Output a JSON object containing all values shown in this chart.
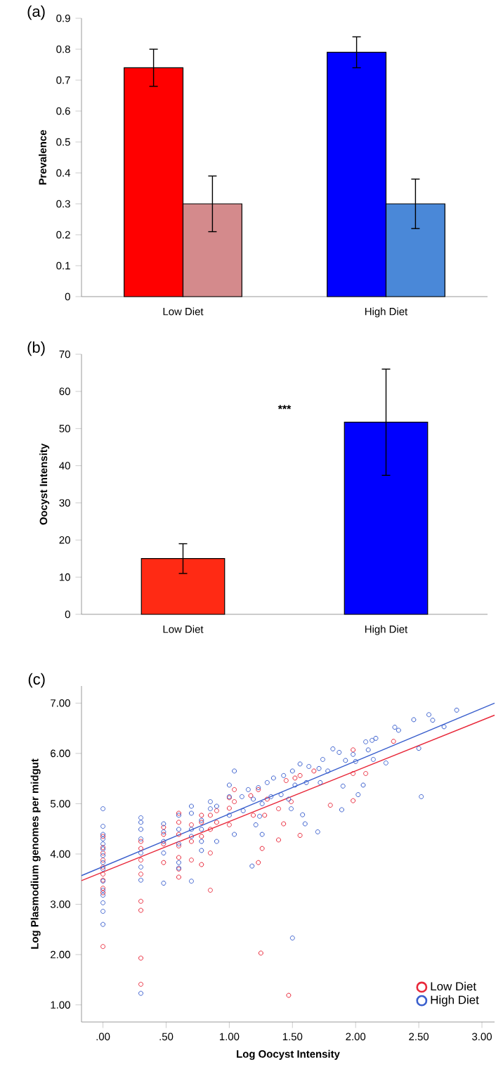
{
  "chart_data": [
    {
      "type": "bar",
      "title": "(a)",
      "ylabel": "Prevalence",
      "categories": [
        "Low Diet",
        "High Diet"
      ],
      "series": [
        {
          "values": [
            0.74,
            0.79
          ],
          "colors": [
            "#ff0000",
            "#0000ff"
          ],
          "errors": [
            0.06,
            0.05
          ]
        },
        {
          "values": [
            0.3,
            0.3
          ],
          "colors": [
            "#d48a8c",
            "#4a88d8"
          ],
          "errors": [
            0.09,
            0.08
          ]
        }
      ],
      "ylim": [
        0,
        0.9
      ],
      "yticks": [
        0,
        0.1,
        0.2,
        0.3,
        0.4,
        0.5,
        0.6,
        0.7,
        0.8,
        0.9
      ]
    },
    {
      "type": "bar",
      "title": "(b)",
      "ylabel": "Oocyst Intensity",
      "categories": [
        "Low Diet",
        "High Diet"
      ],
      "series": [
        {
          "values": [
            15,
            51.7
          ],
          "colors": [
            "#ff2a14",
            "#0000ff"
          ],
          "errors": [
            4,
            14.3
          ]
        }
      ],
      "ylim": [
        0,
        70
      ],
      "yticks": [
        0,
        10,
        20,
        30,
        40,
        50,
        60,
        70
      ],
      "annotations": [
        "***"
      ]
    },
    {
      "type": "scatter",
      "title": "(c)",
      "xlabel": "Log Oocyst Intensity",
      "ylabel": "Log Plasmodium genomes per midgut",
      "marker": "circle",
      "legend": "bottom right",
      "series": [
        {
          "name": "Low Diet",
          "color": "#e8283a",
          "x": [
            0,
            0,
            0,
            0,
            0,
            0,
            0,
            0,
            0,
            0,
            0.3,
            0.3,
            0.3,
            0.3,
            0.3,
            0.3,
            0.3,
            0.3,
            0.48,
            0.48,
            0.48,
            0.48,
            0.6,
            0.6,
            0.6,
            0.6,
            0.6,
            0.6,
            0.6,
            0.7,
            0.7,
            0.7,
            0.78,
            0.78,
            0.78,
            0.78,
            0.85,
            0.85,
            0.85,
            0.85,
            0.9,
            0.9,
            1.0,
            1.0,
            1.0,
            1.04,
            1.04,
            2.3,
            1.98,
            2.08,
            1.98,
            1.8,
            1.98,
            1.67,
            1.56,
            1.45,
            1.23,
            1.17,
            1.3,
            1.49,
            1.28,
            1.19,
            1.43,
            1.56,
            1.39,
            1.26,
            1.23,
            1.25,
            1.47,
            1.39,
            1.52
          ],
          "values": [
            4.35,
            4.13,
            4.02,
            3.88,
            3.74,
            3.6,
            3.48,
            3.32,
            3.23,
            2.16,
            4.25,
            4.11,
            3.88,
            3.6,
            3.06,
            2.88,
            1.93,
            1.41,
            4.53,
            4.39,
            4.2,
            3.83,
            4.81,
            4.63,
            4.39,
            4.16,
            3.93,
            3.7,
            3.54,
            4.58,
            4.25,
            3.88,
            4.77,
            4.63,
            4.35,
            3.79,
            4.77,
            4.49,
            4.02,
            3.28,
            4.86,
            4.63,
            5.12,
            4.91,
            4.58,
            5.28,
            5.04,
            6.24,
            6.07,
            5.6,
            5.6,
            4.97,
            5.06,
            5.65,
            5.56,
            5.46,
            5.28,
            5.16,
            5.09,
            5.04,
            4.77,
            4.77,
            4.6,
            4.37,
            4.28,
            4.11,
            3.83,
            2.03,
            1.19,
            4.9,
            5.51
          ]
        },
        {
          "name": "High Diet",
          "color": "#3a5fcd",
          "x": [
            0,
            0,
            0,
            0,
            0,
            0,
            0,
            0,
            0,
            0,
            0,
            0,
            0,
            0,
            0,
            0.3,
            0.3,
            0.3,
            0.3,
            0.3,
            0.3,
            0.3,
            0.3,
            0.48,
            0.48,
            0.48,
            0.48,
            0.48,
            0.6,
            0.6,
            0.6,
            0.6,
            0.6,
            0.7,
            0.7,
            0.7,
            0.7,
            0.7,
            0.78,
            0.78,
            0.78,
            0.78,
            0.85,
            0.85,
            0.9,
            0.9,
            1.0,
            1.0,
            1.0,
            1.04,
            1.04,
            2.8,
            2.58,
            2.61,
            2.46,
            2.7,
            2.31,
            2.34,
            2.16,
            2.08,
            2.13,
            1.82,
            1.87,
            1.98,
            2.1,
            2.5,
            1.74,
            1.92,
            2.0,
            2.14,
            2.24,
            1.56,
            1.63,
            1.71,
            1.78,
            1.5,
            1.43,
            1.35,
            1.3,
            1.23,
            1.15,
            1.1,
            1.11,
            1.19,
            1.26,
            1.41,
            1.47,
            1.52,
            1.61,
            1.72,
            1.9,
            2.06,
            1.89,
            2.02,
            2.52,
            1.49,
            1.58,
            1.6,
            1.21,
            1.26,
            1.7,
            1.18,
            1.5,
            1.24,
            1.33
          ],
          "values": [
            4.9,
            4.55,
            4.39,
            4.3,
            4.2,
            4.1,
            3.97,
            3.83,
            3.7,
            3.46,
            3.28,
            3.18,
            3.03,
            2.86,
            2.6,
            4.72,
            4.63,
            4.49,
            4.3,
            4.02,
            3.74,
            3.48,
            1.23,
            4.6,
            4.44,
            4.25,
            4.02,
            3.42,
            4.77,
            4.49,
            4.2,
            3.83,
            3.72,
            4.95,
            4.81,
            4.49,
            4.35,
            3.46,
            4.67,
            4.49,
            4.25,
            4.07,
            5.04,
            4.9,
            4.95,
            4.25,
            5.37,
            5.14,
            4.77,
            5.65,
            4.39,
            6.86,
            6.77,
            6.66,
            6.67,
            6.53,
            6.52,
            6.46,
            6.3,
            6.23,
            6.26,
            6.09,
            6.02,
            5.98,
            6.07,
            6.1,
            5.88,
            5.86,
            5.84,
            5.88,
            5.81,
            5.79,
            5.74,
            5.7,
            5.65,
            5.65,
            5.56,
            5.51,
            5.42,
            5.32,
            5.28,
            5.14,
            4.86,
            5.09,
            5.0,
            5.18,
            5.09,
            5.37,
            5.42,
            5.42,
            5.35,
            5.37,
            4.88,
            5.18,
            5.14,
            4.9,
            4.78,
            4.6,
            4.58,
            4.39,
            4.44,
            3.76,
            2.33,
            4.75,
            5.14
          ]
        },
        {
          "type": "line",
          "marker": "none",
          "color": "#e8283a",
          "x": [
            -0.17,
            3.1
          ],
          "values": [
            3.47,
            6.76
          ]
        },
        {
          "type": "line",
          "marker": "none",
          "color": "#3a5fcd",
          "x": [
            -0.17,
            3.1
          ],
          "values": [
            3.57,
            7.0
          ]
        }
      ],
      "xlim": [
        -0.17,
        3.1
      ],
      "ylim": [
        0.66,
        7.34
      ],
      "xticks": [
        {
          "value": 0,
          "label": ".00"
        },
        {
          "value": 0.5,
          "label": ".50"
        },
        {
          "value": 1,
          "label": "1.00"
        },
        {
          "value": 1.5,
          "label": "1.50"
        },
        {
          "value": 2,
          "label": "2.00"
        },
        {
          "value": 2.5,
          "label": "2.50"
        },
        {
          "value": 3,
          "label": "3.00"
        }
      ],
      "yticks": [
        {
          "value": 1,
          "label": "1.00"
        },
        {
          "value": 2,
          "label": "2.00"
        },
        {
          "value": 3,
          "label": "3.00"
        },
        {
          "value": 4,
          "label": "4.00"
        },
        {
          "value": 5,
          "label": "5.00"
        },
        {
          "value": 6,
          "label": "6.00"
        },
        {
          "value": 7,
          "label": "7.00"
        }
      ]
    }
  ]
}
